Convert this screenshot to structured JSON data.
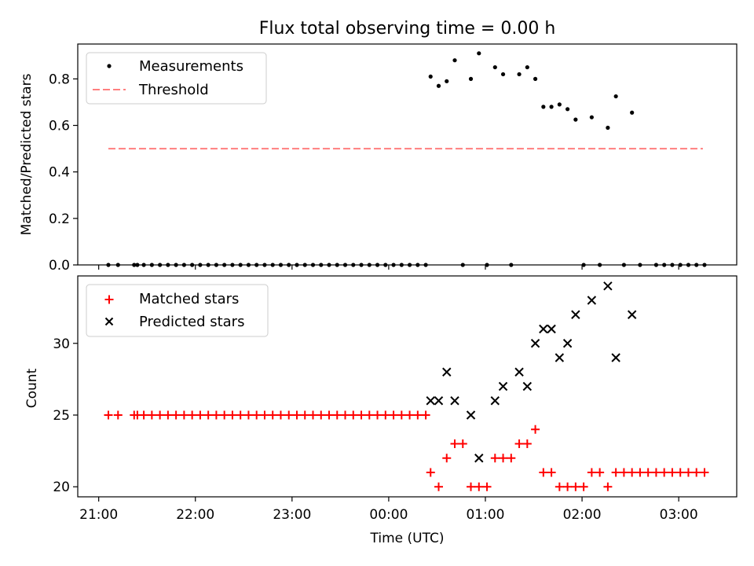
{
  "chart_data": [
    {
      "type": "scatter",
      "title": "Flux total observing time = 0.00 h",
      "xlabel": "",
      "ylabel": "Matched/Predicted stars",
      "ylim": [
        0,
        0.95
      ],
      "yticks": [
        0.0,
        0.2,
        0.4,
        0.6,
        0.8
      ],
      "ytick_labels": [
        "0.0",
        "0.2",
        "0.4",
        "0.6",
        "0.8"
      ],
      "legend_position": "upper-left",
      "threshold": {
        "name": "Threshold",
        "y": 0.5,
        "x_start": "21:06",
        "x_end": "03:15",
        "color": "#ff7f7f"
      },
      "zero_times": [
        "21:06",
        "21:12",
        "21:22",
        "21:24",
        "21:28",
        "21:33",
        "21:38",
        "21:43",
        "21:48",
        "21:53",
        "21:58",
        "22:03",
        "22:08",
        "22:13",
        "22:18",
        "22:23",
        "22:28",
        "22:33",
        "22:38",
        "22:43",
        "22:48",
        "22:53",
        "22:58",
        "23:03",
        "23:08",
        "23:13",
        "23:18",
        "23:23",
        "23:28",
        "23:33",
        "23:38",
        "23:43",
        "23:48",
        "23:53",
        "23:58",
        "00:03",
        "00:08",
        "00:13",
        "00:18",
        "00:23",
        "00:46",
        "01:01",
        "01:16",
        "02:01",
        "02:11",
        "02:26",
        "02:36",
        "02:46",
        "02:51",
        "02:56",
        "03:01",
        "03:06",
        "03:11",
        "03:16"
      ],
      "series": [
        {
          "name": "Measurements",
          "color": "#000000",
          "marker": "dot",
          "points": [
            {
              "x": "00:26",
              "y": 0.81
            },
            {
              "x": "00:31",
              "y": 0.77
            },
            {
              "x": "00:36",
              "y": 0.79
            },
            {
              "x": "00:41",
              "y": 0.88
            },
            {
              "x": "00:51",
              "y": 0.8
            },
            {
              "x": "00:56",
              "y": 0.91
            },
            {
              "x": "01:06",
              "y": 0.85
            },
            {
              "x": "01:11",
              "y": 0.82
            },
            {
              "x": "01:21",
              "y": 0.82
            },
            {
              "x": "01:26",
              "y": 0.85
            },
            {
              "x": "01:31",
              "y": 0.8
            },
            {
              "x": "01:36",
              "y": 0.68
            },
            {
              "x": "01:41",
              "y": 0.68
            },
            {
              "x": "01:46",
              "y": 0.69
            },
            {
              "x": "01:51",
              "y": 0.67
            },
            {
              "x": "01:56",
              "y": 0.625
            },
            {
              "x": "02:06",
              "y": 0.635
            },
            {
              "x": "02:16",
              "y": 0.59
            },
            {
              "x": "02:21",
              "y": 0.725
            },
            {
              "x": "02:31",
              "y": 0.655
            }
          ]
        }
      ]
    },
    {
      "type": "scatter",
      "title": "",
      "xlabel": "Time (UTC)",
      "ylabel": "Count",
      "ylim": [
        19.3,
        34.7
      ],
      "xlim": [
        "20:47",
        "03:36"
      ],
      "yticks": [
        20,
        25,
        30
      ],
      "ytick_labels": [
        "20",
        "25",
        "30"
      ],
      "xticks": [
        "21:00",
        "22:00",
        "23:00",
        "00:00",
        "01:00",
        "02:00",
        "03:00"
      ],
      "legend_position": "upper-left",
      "series": [
        {
          "name": "Matched stars",
          "color": "#ff0000",
          "marker": "plus",
          "constant_runs": [
            {
              "y": 25,
              "times": [
                "21:06",
                "21:12",
                "21:22",
                "21:24",
                "21:28",
                "21:33",
                "21:38",
                "21:43",
                "21:48",
                "21:53",
                "21:58",
                "22:03",
                "22:08",
                "22:13",
                "22:18",
                "22:23",
                "22:28",
                "22:33",
                "22:38",
                "22:43",
                "22:48",
                "22:53",
                "22:58",
                "23:03",
                "23:08",
                "23:13",
                "23:18",
                "23:23",
                "23:28",
                "23:33",
                "23:38",
                "23:43",
                "23:48",
                "23:53",
                "23:58",
                "00:03",
                "00:08",
                "00:13",
                "00:18",
                "00:23"
              ]
            },
            {
              "y": 21,
              "times": [
                "02:21",
                "02:26",
                "02:31",
                "02:36",
                "02:41",
                "02:46",
                "02:51",
                "02:56",
                "03:01",
                "03:06",
                "03:11",
                "03:16"
              ]
            }
          ],
          "points": [
            {
              "x": "00:26",
              "y": 21
            },
            {
              "x": "00:31",
              "y": 20
            },
            {
              "x": "00:36",
              "y": 22
            },
            {
              "x": "00:41",
              "y": 23
            },
            {
              "x": "00:46",
              "y": 23
            },
            {
              "x": "00:51",
              "y": 20
            },
            {
              "x": "00:56",
              "y": 20
            },
            {
              "x": "01:01",
              "y": 20
            },
            {
              "x": "01:06",
              "y": 22
            },
            {
              "x": "01:11",
              "y": 22
            },
            {
              "x": "01:16",
              "y": 22
            },
            {
              "x": "01:21",
              "y": 23
            },
            {
              "x": "01:26",
              "y": 23
            },
            {
              "x": "01:31",
              "y": 24
            },
            {
              "x": "01:36",
              "y": 21
            },
            {
              "x": "01:41",
              "y": 21
            },
            {
              "x": "01:46",
              "y": 20
            },
            {
              "x": "01:51",
              "y": 20
            },
            {
              "x": "01:56",
              "y": 20
            },
            {
              "x": "02:01",
              "y": 20
            },
            {
              "x": "02:06",
              "y": 21
            },
            {
              "x": "02:11",
              "y": 21
            },
            {
              "x": "02:16",
              "y": 20
            }
          ]
        },
        {
          "name": "Predicted stars",
          "color": "#000000",
          "marker": "x",
          "points": [
            {
              "x": "00:26",
              "y": 26
            },
            {
              "x": "00:31",
              "y": 26
            },
            {
              "x": "00:36",
              "y": 28
            },
            {
              "x": "00:41",
              "y": 26
            },
            {
              "x": "00:51",
              "y": 25
            },
            {
              "x": "00:56",
              "y": 22
            },
            {
              "x": "01:06",
              "y": 26
            },
            {
              "x": "01:11",
              "y": 27
            },
            {
              "x": "01:21",
              "y": 28
            },
            {
              "x": "01:26",
              "y": 27
            },
            {
              "x": "01:31",
              "y": 30
            },
            {
              "x": "01:36",
              "y": 31
            },
            {
              "x": "01:41",
              "y": 31
            },
            {
              "x": "01:46",
              "y": 29
            },
            {
              "x": "01:51",
              "y": 30
            },
            {
              "x": "01:56",
              "y": 32
            },
            {
              "x": "02:06",
              "y": 33
            },
            {
              "x": "02:16",
              "y": 34
            },
            {
              "x": "02:21",
              "y": 29
            },
            {
              "x": "02:31",
              "y": 32
            }
          ]
        }
      ]
    }
  ]
}
